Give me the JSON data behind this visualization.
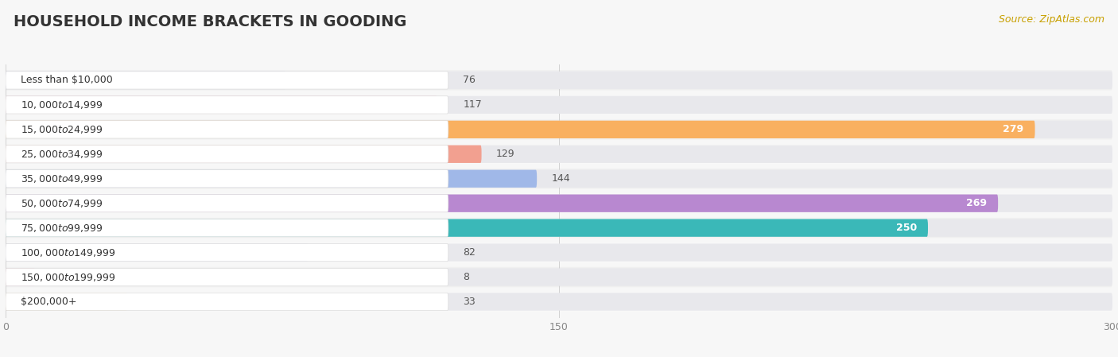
{
  "title": "HOUSEHOLD INCOME BRACKETS IN GOODING",
  "source": "Source: ZipAtlas.com",
  "categories": [
    "Less than $10,000",
    "$10,000 to $14,999",
    "$15,000 to $24,999",
    "$25,000 to $34,999",
    "$35,000 to $49,999",
    "$50,000 to $74,999",
    "$75,000 to $99,999",
    "$100,000 to $149,999",
    "$150,000 to $199,999",
    "$200,000+"
  ],
  "values": [
    76,
    117,
    279,
    129,
    144,
    269,
    250,
    82,
    8,
    33
  ],
  "bar_colors": [
    "#b0b0de",
    "#f9a0b8",
    "#f9b060",
    "#f2a090",
    "#a0b8e8",
    "#b888d0",
    "#3ab8b8",
    "#c0c0e8",
    "#f8a0c0",
    "#f8d0a0"
  ],
  "xlim": [
    0,
    300
  ],
  "xticks": [
    0,
    150,
    300
  ],
  "bg_color": "#f7f7f7",
  "bar_bg_color": "#e8e8ec",
  "row_bg_colors": [
    "#f0f0f0",
    "#f8f8f8"
  ],
  "title_fontsize": 14,
  "source_fontsize": 9,
  "label_fontsize": 9,
  "value_fontsize": 9
}
